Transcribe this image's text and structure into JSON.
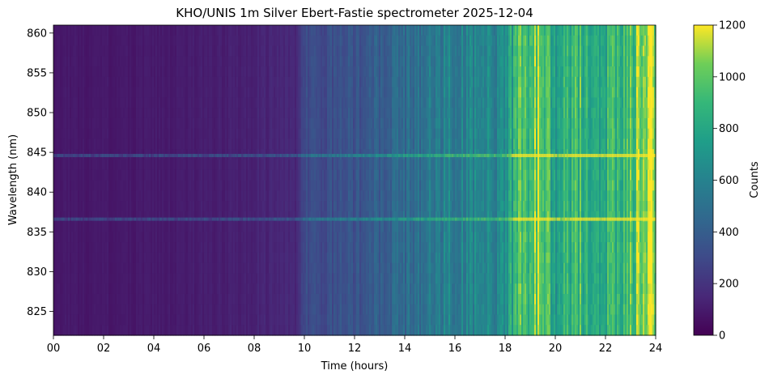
{
  "chart_data": {
    "type": "heatmap",
    "title": "KHO/UNIS 1m Silver Ebert-Fastie spectrometer 2025-12-04",
    "xlabel": "Time (hours)",
    "ylabel": "Wavelength (nm)",
    "xlim": [
      0,
      24
    ],
    "ylim": [
      822,
      861
    ],
    "x_ticks": [
      0,
      2,
      4,
      6,
      8,
      10,
      12,
      14,
      16,
      18,
      20,
      22,
      24
    ],
    "x_tick_labels": [
      "00",
      "02",
      "04",
      "06",
      "08",
      "10",
      "12",
      "14",
      "16",
      "18",
      "20",
      "22",
      "24"
    ],
    "y_ticks": [
      825,
      830,
      835,
      840,
      845,
      850,
      855,
      860
    ],
    "colorbar": {
      "label": "Counts",
      "range": [
        0,
        1200
      ],
      "ticks": [
        0,
        200,
        400,
        600,
        800,
        1000,
        1200
      ],
      "colormap": "viridis"
    },
    "emission_lines_nm": [
      844.6,
      836.6
    ],
    "background_counts_by_time": [
      {
        "hour": 0,
        "counts": 90
      },
      {
        "hour": 3,
        "counts": 90
      },
      {
        "hour": 7,
        "counts": 120
      },
      {
        "hour": 9.7,
        "counts": 160
      },
      {
        "hour": 10,
        "counts": 300
      },
      {
        "hour": 12,
        "counts": 360
      },
      {
        "hour": 14,
        "counts": 480
      },
      {
        "hour": 16,
        "counts": 620
      },
      {
        "hour": 18,
        "counts": 650
      },
      {
        "hour": 18.4,
        "counts": 900
      },
      {
        "hour": 19.5,
        "counts": 1100
      },
      {
        "hour": 20,
        "counts": 780
      },
      {
        "hour": 21,
        "counts": 950
      },
      {
        "hour": 22,
        "counts": 880
      },
      {
        "hour": 23,
        "counts": 980
      },
      {
        "hour": 23.5,
        "counts": 1150
      },
      {
        "hour": 24,
        "counts": 1180
      }
    ]
  }
}
